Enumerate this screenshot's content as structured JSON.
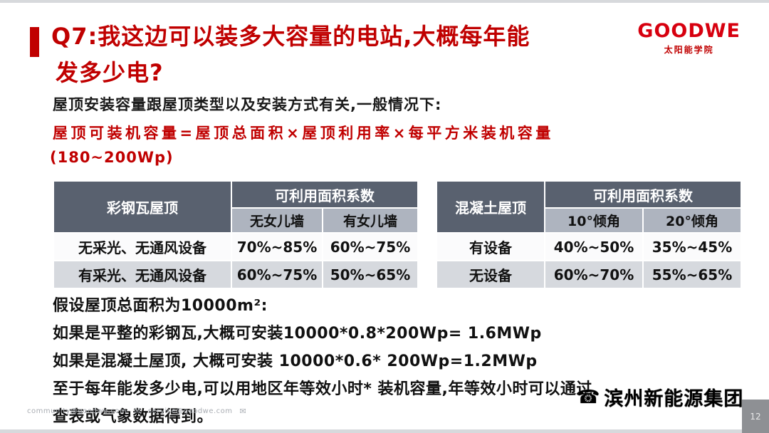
{
  "title": {
    "line1": "Q7:我这边可以装多大容量的电站,大概每年能",
    "line2": "发多少电?"
  },
  "logo": {
    "brand": "GOODWE",
    "subtitle": "太阳能学院"
  },
  "intro": "屋顶安装容量跟屋顶类型以及安装方式有关,一般情况下:",
  "formula": {
    "line1": "屋顶可装机容量=屋顶总面积×屋顶利用率×每平方米装机容量",
    "line2": "(180~200Wp)"
  },
  "tables": {
    "left": {
      "corner": "彩钢瓦屋顶",
      "span_header": "可利用面积系数",
      "sub_headers": [
        "无女儿墙",
        "有女儿墙"
      ],
      "rows": [
        {
          "label": "无采光、无通风设备",
          "v1": "70%~85%",
          "v2": "60%~75%"
        },
        {
          "label": "有采光、无通风设备",
          "v1": "60%~75%",
          "v2": "50%~65%"
        }
      ]
    },
    "right": {
      "corner": "混凝土屋顶",
      "span_header": "可利用面积系数",
      "sub_headers": [
        "10°倾角",
        "20°倾角"
      ],
      "rows": [
        {
          "label": "有设备",
          "v1": "40%~50%",
          "v2": "35%~45%"
        },
        {
          "label": "无设备",
          "v1": "60%~70%",
          "v2": "55%~65%"
        }
      ]
    }
  },
  "notes": [
    "假设屋顶总面积为10000m²:",
    "如果是平整的彩钢瓦,大概可安装10000*0.8*200Wp= 1.6MWp",
    "如果是混凝土屋顶, 大概可安装 10000*0.6* 200Wp=1.2MWp",
    "至于每年能发多少电,可以用地区年等效小时* 装机容量,年等效小时可以通过",
    "查表或气象数据得到。"
  ],
  "footer": {
    "email1": "community@goodwe.com",
    "email2": "service@goodwe.com",
    "envelope_icon": "✉"
  },
  "watermark": {
    "icon": "☎",
    "text": "滨州新能源集团"
  },
  "page_number": "12",
  "colors": {
    "accent_red": "#c00000",
    "table_header": "#59616f",
    "table_subheader": "#aeb4bf",
    "table_row_alt": "#d6d9de"
  }
}
